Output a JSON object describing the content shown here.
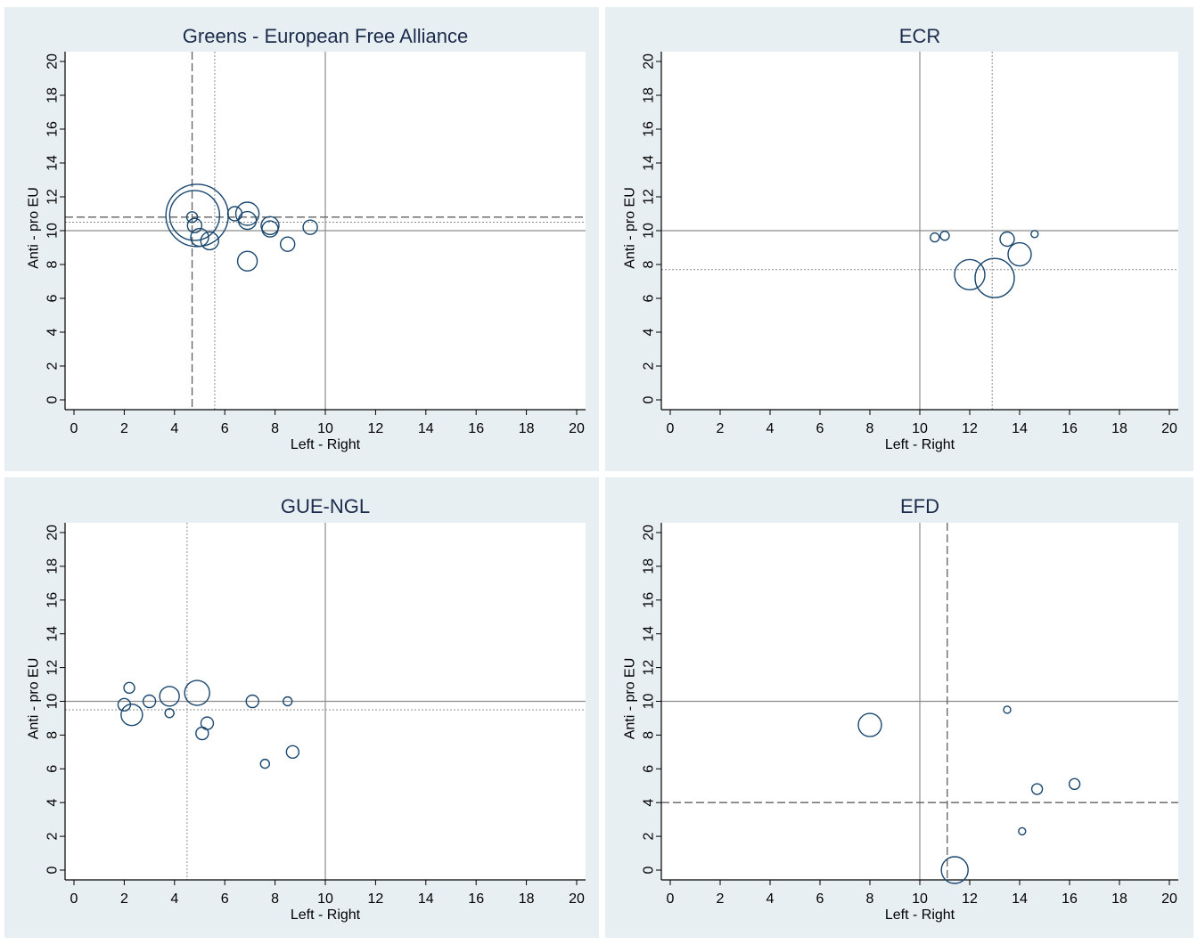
{
  "chart_data": [
    {
      "type": "scatter",
      "title": "Greens - European Free Alliance",
      "xlabel": "Left - Right",
      "ylabel": "Anti - pro EU",
      "xlim": [
        0,
        20
      ],
      "ylim": [
        0,
        20
      ],
      "xticks": [
        0,
        2,
        4,
        6,
        8,
        10,
        12,
        14,
        16,
        18,
        20
      ],
      "yticks": [
        0,
        2,
        4,
        6,
        8,
        10,
        12,
        14,
        16,
        18,
        20
      ],
      "grid": false,
      "reference_lines": [
        {
          "orientation": "vertical",
          "value": 10,
          "style": "solid"
        },
        {
          "orientation": "horizontal",
          "value": 10,
          "style": "solid"
        },
        {
          "orientation": "vertical",
          "value": 4.7,
          "style": "dashed"
        },
        {
          "orientation": "horizontal",
          "value": 10.8,
          "style": "dashed"
        },
        {
          "orientation": "vertical",
          "value": 5.6,
          "style": "dotted"
        },
        {
          "orientation": "horizontal",
          "value": 10.5,
          "style": "dotted"
        }
      ],
      "points": [
        {
          "x": 4.9,
          "y": 10.9,
          "size": 35
        },
        {
          "x": 4.8,
          "y": 10.9,
          "size": 28
        },
        {
          "x": 4.7,
          "y": 10.8,
          "size": 6
        },
        {
          "x": 4.8,
          "y": 10.3,
          "size": 8
        },
        {
          "x": 5.0,
          "y": 9.6,
          "size": 10
        },
        {
          "x": 5.4,
          "y": 9.4,
          "size": 10
        },
        {
          "x": 6.4,
          "y": 11.0,
          "size": 8
        },
        {
          "x": 6.9,
          "y": 11.0,
          "size": 13
        },
        {
          "x": 6.9,
          "y": 10.6,
          "size": 10
        },
        {
          "x": 7.8,
          "y": 10.3,
          "size": 10
        },
        {
          "x": 7.8,
          "y": 10.1,
          "size": 9
        },
        {
          "x": 6.9,
          "y": 8.2,
          "size": 11
        },
        {
          "x": 8.5,
          "y": 9.2,
          "size": 8
        },
        {
          "x": 9.4,
          "y": 10.2,
          "size": 8
        }
      ]
    },
    {
      "type": "scatter",
      "title": "ECR",
      "xlabel": "Left - Right",
      "ylabel": "Anti - pro EU",
      "xlim": [
        0,
        20
      ],
      "ylim": [
        0,
        20
      ],
      "xticks": [
        0,
        2,
        4,
        6,
        8,
        10,
        12,
        14,
        16,
        18,
        20
      ],
      "yticks": [
        0,
        2,
        4,
        6,
        8,
        10,
        12,
        14,
        16,
        18,
        20
      ],
      "grid": false,
      "reference_lines": [
        {
          "orientation": "vertical",
          "value": 10,
          "style": "solid"
        },
        {
          "orientation": "horizontal",
          "value": 10,
          "style": "solid"
        },
        {
          "orientation": "vertical",
          "value": 12.9,
          "style": "dotted"
        },
        {
          "orientation": "horizontal",
          "value": 7.7,
          "style": "dotted"
        }
      ],
      "points": [
        {
          "x": 10.6,
          "y": 9.6,
          "size": 5
        },
        {
          "x": 11.0,
          "y": 9.7,
          "size": 5
        },
        {
          "x": 12.0,
          "y": 7.4,
          "size": 17
        },
        {
          "x": 13.0,
          "y": 7.2,
          "size": 22
        },
        {
          "x": 13.5,
          "y": 9.5,
          "size": 8
        },
        {
          "x": 14.0,
          "y": 8.6,
          "size": 13
        },
        {
          "x": 14.6,
          "y": 9.8,
          "size": 4
        }
      ]
    },
    {
      "type": "scatter",
      "title": "GUE-NGL",
      "xlabel": "Left - Right",
      "ylabel": "Anti - pro EU",
      "xlim": [
        0,
        20
      ],
      "ylim": [
        0,
        20
      ],
      "xticks": [
        0,
        2,
        4,
        6,
        8,
        10,
        12,
        14,
        16,
        18,
        20
      ],
      "yticks": [
        0,
        2,
        4,
        6,
        8,
        10,
        12,
        14,
        16,
        18,
        20
      ],
      "grid": false,
      "reference_lines": [
        {
          "orientation": "vertical",
          "value": 10,
          "style": "solid"
        },
        {
          "orientation": "horizontal",
          "value": 10,
          "style": "solid"
        },
        {
          "orientation": "vertical",
          "value": 4.5,
          "style": "dotted"
        },
        {
          "orientation": "horizontal",
          "value": 9.5,
          "style": "dotted"
        }
      ],
      "points": [
        {
          "x": 2.0,
          "y": 9.8,
          "size": 7
        },
        {
          "x": 2.2,
          "y": 10.8,
          "size": 6
        },
        {
          "x": 2.3,
          "y": 9.2,
          "size": 12
        },
        {
          "x": 3.0,
          "y": 10.0,
          "size": 7
        },
        {
          "x": 3.8,
          "y": 10.3,
          "size": 11
        },
        {
          "x": 3.8,
          "y": 9.3,
          "size": 5
        },
        {
          "x": 4.9,
          "y": 10.5,
          "size": 14
        },
        {
          "x": 5.1,
          "y": 8.1,
          "size": 7
        },
        {
          "x": 5.3,
          "y": 8.7,
          "size": 7
        },
        {
          "x": 7.1,
          "y": 10.0,
          "size": 7
        },
        {
          "x": 8.5,
          "y": 10.0,
          "size": 5
        },
        {
          "x": 7.6,
          "y": 6.3,
          "size": 5
        },
        {
          "x": 8.7,
          "y": 7.0,
          "size": 7
        }
      ]
    },
    {
      "type": "scatter",
      "title": "EFD",
      "xlabel": "Left - Right",
      "ylabel": "Anti - pro EU",
      "xlim": [
        0,
        20
      ],
      "ylim": [
        0,
        20
      ],
      "xticks": [
        0,
        2,
        4,
        6,
        8,
        10,
        12,
        14,
        16,
        18,
        20
      ],
      "yticks": [
        0,
        2,
        4,
        6,
        8,
        10,
        12,
        14,
        16,
        18,
        20
      ],
      "grid": false,
      "reference_lines": [
        {
          "orientation": "vertical",
          "value": 10,
          "style": "solid"
        },
        {
          "orientation": "horizontal",
          "value": 10,
          "style": "solid"
        },
        {
          "orientation": "vertical",
          "value": 11.1,
          "style": "dashed"
        },
        {
          "orientation": "horizontal",
          "value": 4.0,
          "style": "dashed"
        }
      ],
      "points": [
        {
          "x": 8.0,
          "y": 8.6,
          "size": 13
        },
        {
          "x": 11.4,
          "y": 0.0,
          "size": 15
        },
        {
          "x": 13.5,
          "y": 9.5,
          "size": 4
        },
        {
          "x": 14.1,
          "y": 2.3,
          "size": 4
        },
        {
          "x": 14.7,
          "y": 4.8,
          "size": 6
        },
        {
          "x": 16.2,
          "y": 5.1,
          "size": 6
        }
      ]
    }
  ],
  "colors": {
    "outer_background": "#e8eff2",
    "plot_background": "#ffffff",
    "marker_stroke": "#1a476f",
    "reference_line": "#8c8c8c",
    "axis": "#000000",
    "text": "#000000",
    "title": "#1a2b4c"
  }
}
